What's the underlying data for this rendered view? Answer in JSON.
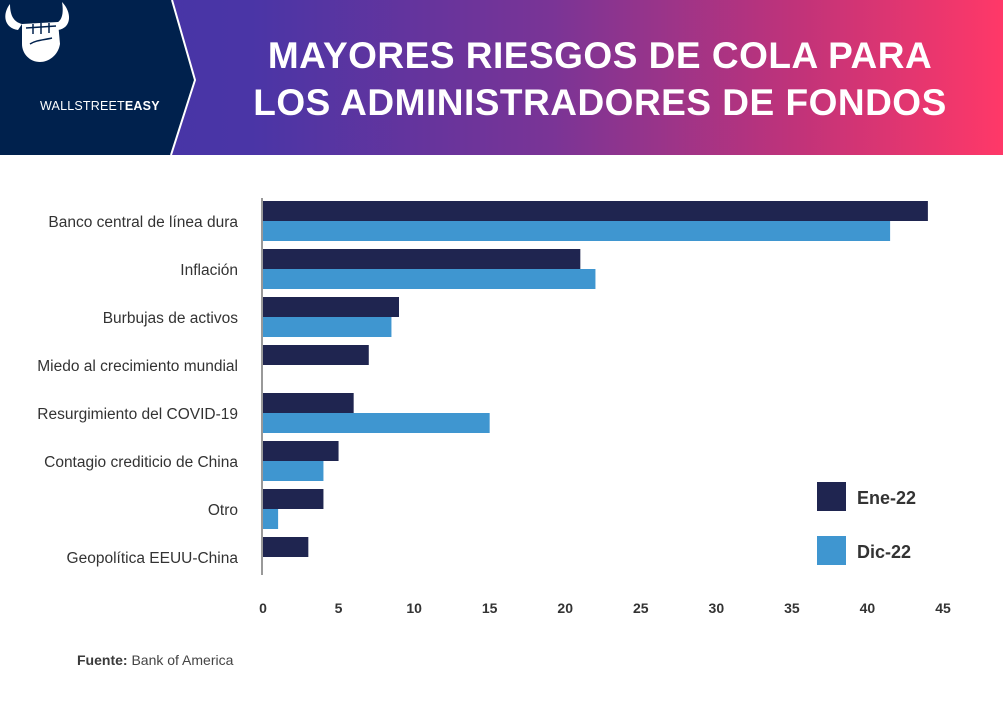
{
  "header": {
    "brand": {
      "name_light": "WALLSTREET",
      "name_bold": "EASY",
      "icon": "bull-horns-fist-icon"
    },
    "title_line1": "MAYORES RIESGOS DE COLA PARA",
    "title_line2": "LOS ADMINISTRADORES DE FONDOS"
  },
  "colors": {
    "header_dark": "#00214D",
    "gradient_start": "#4434A8",
    "gradient_end": "#FF3868",
    "series_ene": "#1F2550",
    "series_dic": "#3F96D0"
  },
  "chart_data": {
    "type": "bar",
    "orientation": "horizontal",
    "title": "Mayores riesgos de cola para los administradores de fondos",
    "xlabel": "",
    "ylabel": "",
    "xlim": [
      0,
      45
    ],
    "xticks": [
      0,
      5,
      10,
      15,
      20,
      25,
      30,
      35,
      40,
      45
    ],
    "grid": false,
    "legend_position": "bottom-right",
    "categories": [
      "Banco central de línea dura",
      "Inflación",
      "Burbujas de activos",
      "Miedo al crecimiento mundial",
      "Resurgimiento del COVID-19",
      "Contagio crediticio de China",
      "Otro",
      "Geopolítica EEUU-China"
    ],
    "series": [
      {
        "name": "Ene-22",
        "color": "#1F2550",
        "values": [
          44,
          21,
          9,
          7,
          6,
          5,
          4,
          3
        ]
      },
      {
        "name": "Dic-22",
        "color": "#3F96D0",
        "values": [
          41.5,
          22,
          8.5,
          null,
          15,
          4,
          1,
          null
        ]
      }
    ]
  },
  "footer": {
    "source_label": "Fuente:",
    "source_value": "Bank of America"
  }
}
